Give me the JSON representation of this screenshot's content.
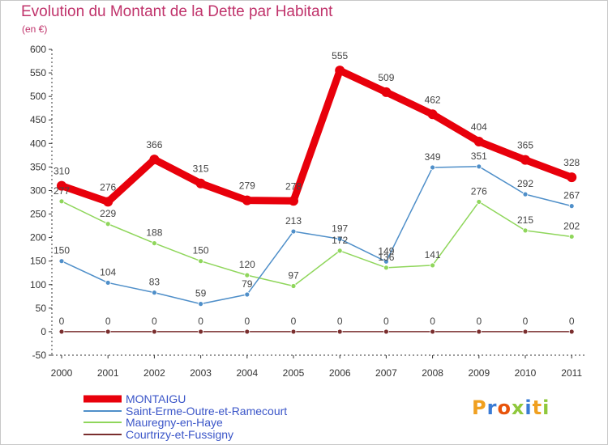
{
  "header": {
    "title": "Evolution du Montant de la Dette par Habitant",
    "subtitle": "(en €)"
  },
  "logo": {
    "text": "Proxiti"
  },
  "colors": {
    "title": "#c0336b",
    "legend_text": "#3a55c8",
    "axis": "#333333"
  },
  "chart_data": {
    "type": "line",
    "categories": [
      "2000",
      "2001",
      "2002",
      "2003",
      "2004",
      "2005",
      "2006",
      "2007",
      "2008",
      "2009",
      "2010",
      "2011"
    ],
    "ylim": [
      -50,
      600
    ],
    "yticks": [
      -50,
      0,
      50,
      100,
      150,
      200,
      250,
      300,
      350,
      400,
      450,
      500,
      550,
      600
    ],
    "grid": false,
    "legend_position": "bottom-left",
    "series": [
      {
        "name": "MONTAIGU",
        "color": "#e8000b",
        "values": [
          310,
          276,
          366,
          315,
          279,
          278,
          555,
          509,
          462,
          404,
          365,
          328
        ]
      },
      {
        "name": "Saint-Erme-Outre-et-Ramecourt",
        "color": "#4f8fc9",
        "values": [
          150,
          104,
          83,
          59,
          79,
          213,
          197,
          149,
          349,
          351,
          292,
          267
        ]
      },
      {
        "name": "Mauregny-en-Haye",
        "color": "#8fd65b",
        "values": [
          277,
          229,
          188,
          150,
          120,
          97,
          172,
          136,
          141,
          276,
          215,
          202
        ]
      },
      {
        "name": "Courtrizy-et-Fussigny",
        "color": "#7a2e2e",
        "values": [
          0,
          0,
          0,
          0,
          0,
          0,
          0,
          0,
          0,
          0,
          0,
          0
        ]
      }
    ]
  }
}
